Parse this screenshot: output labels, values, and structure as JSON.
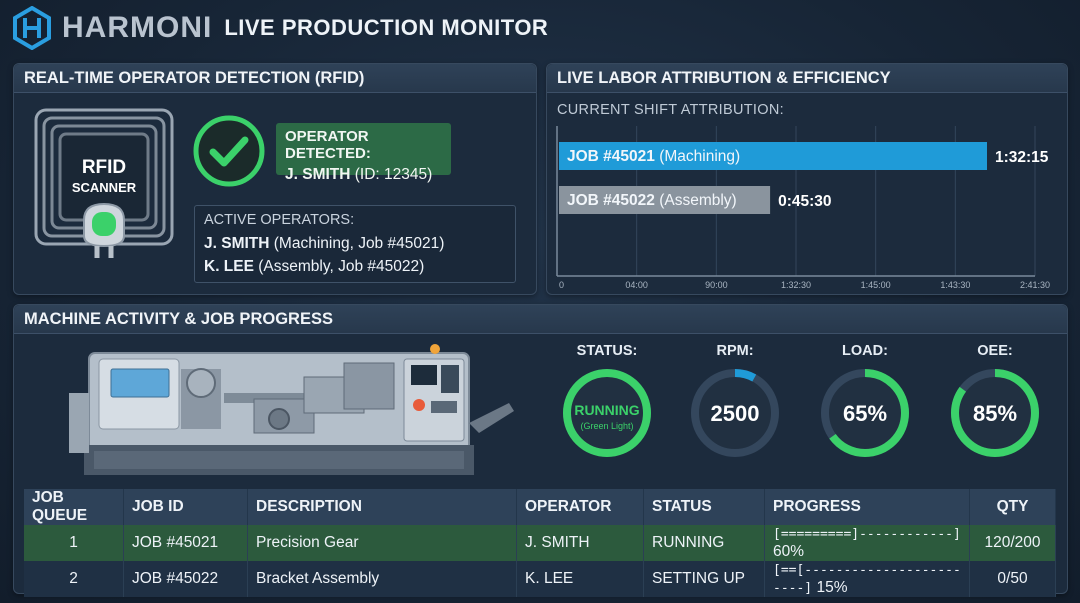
{
  "header": {
    "brand": "HARMONI",
    "title": "LIVE PRODUCTION MONITOR"
  },
  "rfid": {
    "title": "REAL-TIME OPERATOR DETECTION (RFID)",
    "scanner_label_1": "RFID",
    "scanner_label_2": "SCANNER",
    "detected_title": "OPERATOR DETECTED:",
    "detected_name": "J. SMITH",
    "detected_id": "(ID: 12345)",
    "active_title": "ACTIVE OPERATORS:",
    "active": [
      {
        "name": "J. SMITH",
        "detail": "(Machining, Job #45021)"
      },
      {
        "name": "K. LEE",
        "detail": "(Assembly, Job #45022)"
      }
    ]
  },
  "labor": {
    "title": "LIVE LABOR ATTRIBUTION & EFFICIENCY",
    "subtitle": "CURRENT SHIFT ATTRIBUTION:"
  },
  "chart_data": {
    "type": "bar",
    "orientation": "horizontal",
    "bars": [
      {
        "job": "JOB #45021",
        "detail": "(Machining)",
        "value_label": "1:32:15",
        "color": "#1f9bd8"
      },
      {
        "job": "JOB #45022",
        "detail": "(Assembly)",
        "value_label": "0:45:30",
        "color": "#8a949e"
      }
    ],
    "ticks": [
      "0",
      "04:00",
      "90:00",
      "1:32:30",
      "1:45:00",
      "1:43:30",
      "2:41:30"
    ],
    "grid": true
  },
  "machine": {
    "title": "MACHINE ACTIVITY & JOB PROGRESS",
    "gauges": [
      {
        "label": "STATUS:",
        "value": "RUNNING",
        "sub": "(Green Light)",
        "fraction": 1.0,
        "color": "#3bd16a"
      },
      {
        "label": "RPM:",
        "value": "2500",
        "sub": "",
        "fraction": 0.08,
        "color": "#1f9bd8"
      },
      {
        "label": "LOAD:",
        "value": "65%",
        "sub": "",
        "fraction": 0.65,
        "color": "#3bd16a"
      },
      {
        "label": "OEE:",
        "value": "85%",
        "sub": "",
        "fraction": 0.85,
        "color": "#3bd16a"
      }
    ]
  },
  "table": {
    "headers": [
      "JOB QUEUE",
      "JOB ID",
      "DESCRIPTION",
      "OPERATOR",
      "STATUS",
      "PROGRESS",
      "QTY"
    ],
    "rows": [
      {
        "queue": "1",
        "job_id": "JOB #45021",
        "description": "Precision Gear",
        "operator": "J. SMITH",
        "status": "RUNNING",
        "progress_bar": "[=========]------------]",
        "progress_pct": "60%",
        "qty": "120/200"
      },
      {
        "queue": "2",
        "job_id": "JOB #45022",
        "description": "Bracket Assembly",
        "operator": "K. LEE",
        "status": "SETTING UP",
        "progress_bar": "[==[------------------------]",
        "progress_pct": "15%",
        "qty": "0/50"
      }
    ]
  }
}
